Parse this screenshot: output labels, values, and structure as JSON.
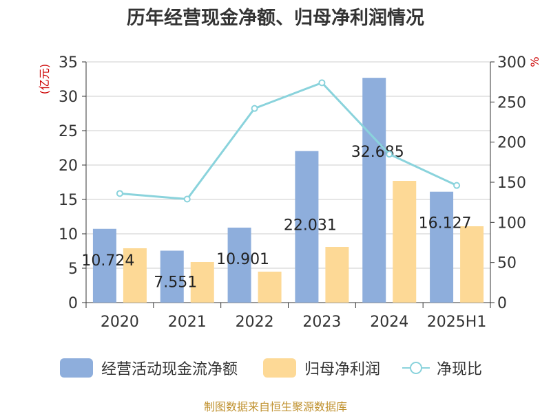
{
  "title": "历年经营现金净额、归母净利润情况",
  "source": "制图数据来自恒生聚源数据库",
  "colors": {
    "bar1": "#8eaedc",
    "bar2": "#fdd996",
    "line": "#8ad3dc",
    "axis": "#333333",
    "grid": "#cccccc",
    "left_unit": "#cc0000",
    "right_unit": "#cc0000"
  },
  "chart_data": {
    "type": "bar",
    "title": "历年经营现金净额、归母净利润情况",
    "categories": [
      "2020",
      "2021",
      "2022",
      "2023",
      "2024",
      "2025H1"
    ],
    "series": [
      {
        "name": "经营活动现金流净额",
        "type": "bar",
        "axis": "left",
        "values": [
          10.724,
          7.551,
          10.901,
          22.031,
          32.685,
          16.127
        ],
        "labels": [
          "10.724",
          "7.551",
          "10.901",
          "22.031",
          "32.685",
          "16.127"
        ]
      },
      {
        "name": "归母净利润",
        "type": "bar",
        "axis": "left",
        "values": [
          7.9,
          5.9,
          4.5,
          8.1,
          17.7,
          11.1
        ]
      },
      {
        "name": "净现比",
        "type": "line",
        "axis": "right",
        "values": [
          136,
          129,
          242,
          274,
          185,
          146
        ]
      }
    ],
    "left_axis": {
      "unit": "(亿元)",
      "ylim": [
        0,
        35
      ],
      "ticks": [
        "0",
        "5",
        "10",
        "15",
        "20",
        "25",
        "30",
        "35"
      ]
    },
    "right_axis": {
      "unit": "%",
      "ylim": [
        0,
        300
      ],
      "ticks": [
        "0",
        "50",
        "100",
        "150",
        "200",
        "250",
        "300"
      ]
    },
    "grid": true,
    "legend_position": "bottom"
  }
}
